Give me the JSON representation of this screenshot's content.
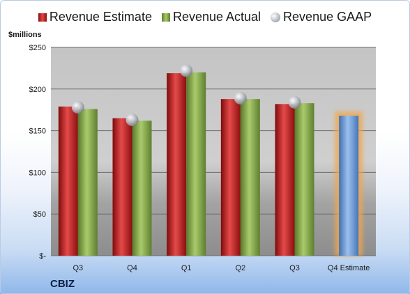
{
  "legend": {
    "estimate": "Revenue Estimate",
    "actual": "Revenue Actual",
    "gaap": "Revenue GAAP"
  },
  "ylabel": "$millions",
  "company": "CBIZ",
  "colors": {
    "estimate": "#c0191b",
    "actual": "#7fa044",
    "gaap": "#b9bdc6",
    "estimate_future": "#6b9ad6",
    "highlight": "#f2a64a"
  },
  "chart_data": {
    "type": "bar",
    "categories": [
      "Q3",
      "Q4",
      "Q1",
      "Q2",
      "Q3",
      "Q4 Estimate"
    ],
    "series": [
      {
        "name": "Revenue Estimate",
        "values": [
          179,
          165,
          219,
          188,
          182,
          168
        ]
      },
      {
        "name": "Revenue Actual",
        "values": [
          176,
          162,
          220,
          188,
          183,
          null
        ]
      },
      {
        "name": "Revenue GAAP",
        "values": [
          178,
          163,
          222,
          189,
          184,
          null
        ]
      }
    ],
    "ylabel": "$millions",
    "ylim": [
      0,
      250
    ],
    "yticks": [
      0,
      50,
      100,
      150,
      200,
      250
    ],
    "ytick_labels": [
      "$-",
      "$50",
      "$100",
      "$150",
      "$200",
      "$250"
    ],
    "grid": true,
    "legend_position": "top"
  }
}
